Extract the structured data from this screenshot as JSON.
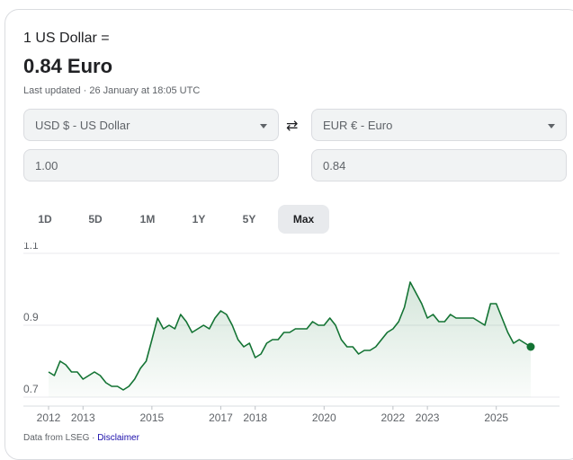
{
  "header": {
    "intro": "1 US Dollar =",
    "rate": "0.84 Euro",
    "updated": "Last updated · 26 January at 18:05 UTC"
  },
  "converter": {
    "from_currency": "USD $ - US Dollar",
    "to_currency": "EUR € - Euro",
    "from_amount": "1.00",
    "to_amount": "0.84",
    "swap_icon": "swap-arrows-icon"
  },
  "tabs": [
    {
      "label": "1D",
      "active": false
    },
    {
      "label": "5D",
      "active": false
    },
    {
      "label": "1M",
      "active": false
    },
    {
      "label": "1Y",
      "active": false
    },
    {
      "label": "5Y",
      "active": false
    },
    {
      "label": "Max",
      "active": true
    }
  ],
  "footer": {
    "source_text": "Data from LSEG ·",
    "disclaimer": "Disclaimer"
  },
  "colors": {
    "line": "#137333",
    "fill": "#137333",
    "accent_link": "#1a0dab"
  },
  "chart_data": {
    "type": "area",
    "x": [
      "2012-01",
      "2012-03",
      "2012-05",
      "2012-07",
      "2012-09",
      "2012-11",
      "2013-01",
      "2013-03",
      "2013-05",
      "2013-07",
      "2013-09",
      "2013-11",
      "2014-01",
      "2014-03",
      "2014-05",
      "2014-07",
      "2014-09",
      "2014-11",
      "2015-01",
      "2015-03",
      "2015-05",
      "2015-07",
      "2015-09",
      "2015-11",
      "2016-01",
      "2016-03",
      "2016-05",
      "2016-07",
      "2016-09",
      "2016-11",
      "2017-01",
      "2017-03",
      "2017-05",
      "2017-07",
      "2017-09",
      "2017-11",
      "2018-01",
      "2018-03",
      "2018-05",
      "2018-07",
      "2018-09",
      "2018-11",
      "2019-01",
      "2019-03",
      "2019-05",
      "2019-07",
      "2019-09",
      "2019-11",
      "2020-01",
      "2020-03",
      "2020-05",
      "2020-07",
      "2020-09",
      "2020-11",
      "2021-01",
      "2021-03",
      "2021-05",
      "2021-07",
      "2021-09",
      "2021-11",
      "2022-01",
      "2022-03",
      "2022-05",
      "2022-07",
      "2022-09",
      "2022-11",
      "2023-01",
      "2023-03",
      "2023-05",
      "2023-07",
      "2023-09",
      "2023-11",
      "2024-01",
      "2024-03",
      "2024-05",
      "2024-07",
      "2024-09",
      "2024-11",
      "2025-01",
      "2025-03",
      "2025-05",
      "2025-07",
      "2025-09",
      "2025-11",
      "2026-01"
    ],
    "y": [
      0.77,
      0.76,
      0.8,
      0.79,
      0.77,
      0.77,
      0.75,
      0.76,
      0.77,
      0.76,
      0.74,
      0.73,
      0.73,
      0.72,
      0.73,
      0.75,
      0.78,
      0.8,
      0.86,
      0.92,
      0.89,
      0.9,
      0.89,
      0.93,
      0.91,
      0.88,
      0.89,
      0.9,
      0.89,
      0.92,
      0.94,
      0.93,
      0.9,
      0.86,
      0.84,
      0.85,
      0.81,
      0.82,
      0.85,
      0.86,
      0.86,
      0.88,
      0.88,
      0.89,
      0.89,
      0.89,
      0.91,
      0.9,
      0.9,
      0.92,
      0.9,
      0.86,
      0.84,
      0.84,
      0.82,
      0.83,
      0.83,
      0.84,
      0.86,
      0.88,
      0.89,
      0.91,
      0.95,
      1.02,
      0.99,
      0.96,
      0.92,
      0.93,
      0.91,
      0.91,
      0.93,
      0.92,
      0.92,
      0.92,
      0.92,
      0.91,
      0.9,
      0.96,
      0.96,
      0.92,
      0.88,
      0.85,
      0.86,
      0.85,
      0.84
    ],
    "y_ticks": [
      0.7,
      0.9,
      1.1
    ],
    "y_tick_labels": [
      "0.7",
      "0.9",
      "1.1"
    ],
    "ylim": [
      0.7,
      1.1
    ],
    "x_tick_labels": [
      "2012",
      "2013",
      "2015",
      "2017",
      "2018",
      "2020",
      "2022",
      "2023",
      "2025"
    ],
    "x_tick_dates": [
      "2012-01",
      "2013-01",
      "2015-01",
      "2017-01",
      "2018-01",
      "2020-01",
      "2022-01",
      "2023-01",
      "2025-01"
    ],
    "grid": true,
    "title": "",
    "xlabel": "",
    "ylabel": ""
  }
}
